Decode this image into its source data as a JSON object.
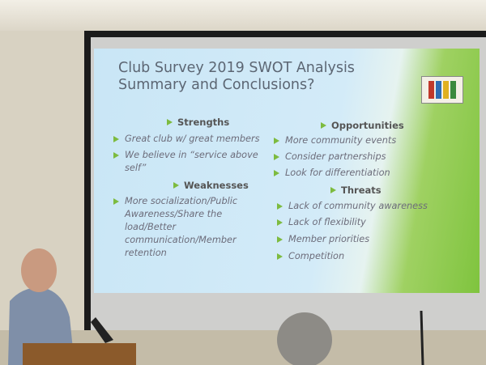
{
  "slide": {
    "title_lines": [
      "Club Survey 2019 SWOT Analysis",
      "Summary and Conclusions?"
    ],
    "strengths": {
      "heading": "Strengths",
      "items": [
        "Great club w/ great members",
        "We believe in “service above self”"
      ]
    },
    "weaknesses": {
      "heading": "Weaknesses",
      "items": [
        "More socialization/Public Awareness/Share the load/Better communication/Member retention"
      ]
    },
    "opportunities": {
      "heading": "Opportunities",
      "items": [
        "More community events",
        "Consider partnerships",
        "Look for differentiation"
      ]
    },
    "threats": {
      "heading": "Threats",
      "items": [
        "Lack of community awareness",
        "Lack of flexibility",
        "Member priorities",
        "Competition"
      ]
    }
  }
}
